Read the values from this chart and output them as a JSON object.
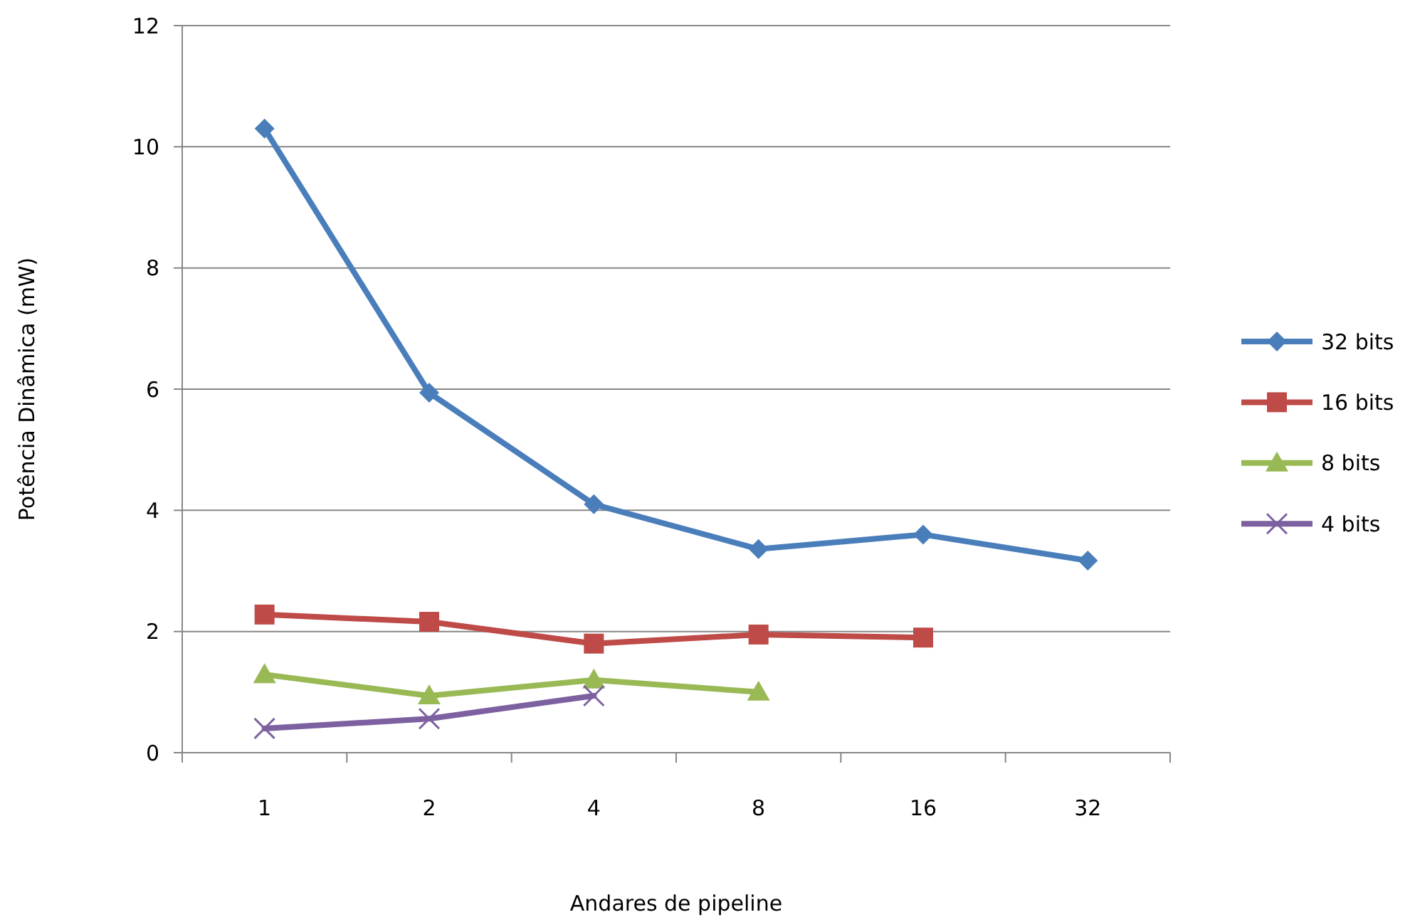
{
  "chart_data": {
    "type": "line",
    "xlabel": "Andares de pipeline",
    "ylabel": "Potência Dinâmica (mW)",
    "categories": [
      "1",
      "2",
      "4",
      "8",
      "16",
      "32"
    ],
    "ylim": [
      0,
      12
    ],
    "yticks": [
      0,
      2,
      4,
      6,
      8,
      10,
      12
    ],
    "grid": "y",
    "legend": "right",
    "series": [
      {
        "name": "32 bits",
        "color": "#4a7ebb",
        "marker": "diamond",
        "values": [
          10.3,
          5.94,
          4.1,
          3.36,
          3.6,
          3.17
        ]
      },
      {
        "name": "16 bits",
        "color": "#be4b48",
        "marker": "square",
        "values": [
          2.28,
          2.16,
          1.8,
          1.95,
          1.9,
          null
        ]
      },
      {
        "name": "8 bits",
        "color": "#98b954",
        "marker": "triangle",
        "values": [
          1.29,
          0.94,
          1.2,
          1.0,
          null,
          null
        ]
      },
      {
        "name": "4 bits",
        "color": "#7d60a0",
        "marker": "cross",
        "values": [
          0.4,
          0.56,
          0.94,
          null,
          null,
          null
        ]
      }
    ]
  }
}
